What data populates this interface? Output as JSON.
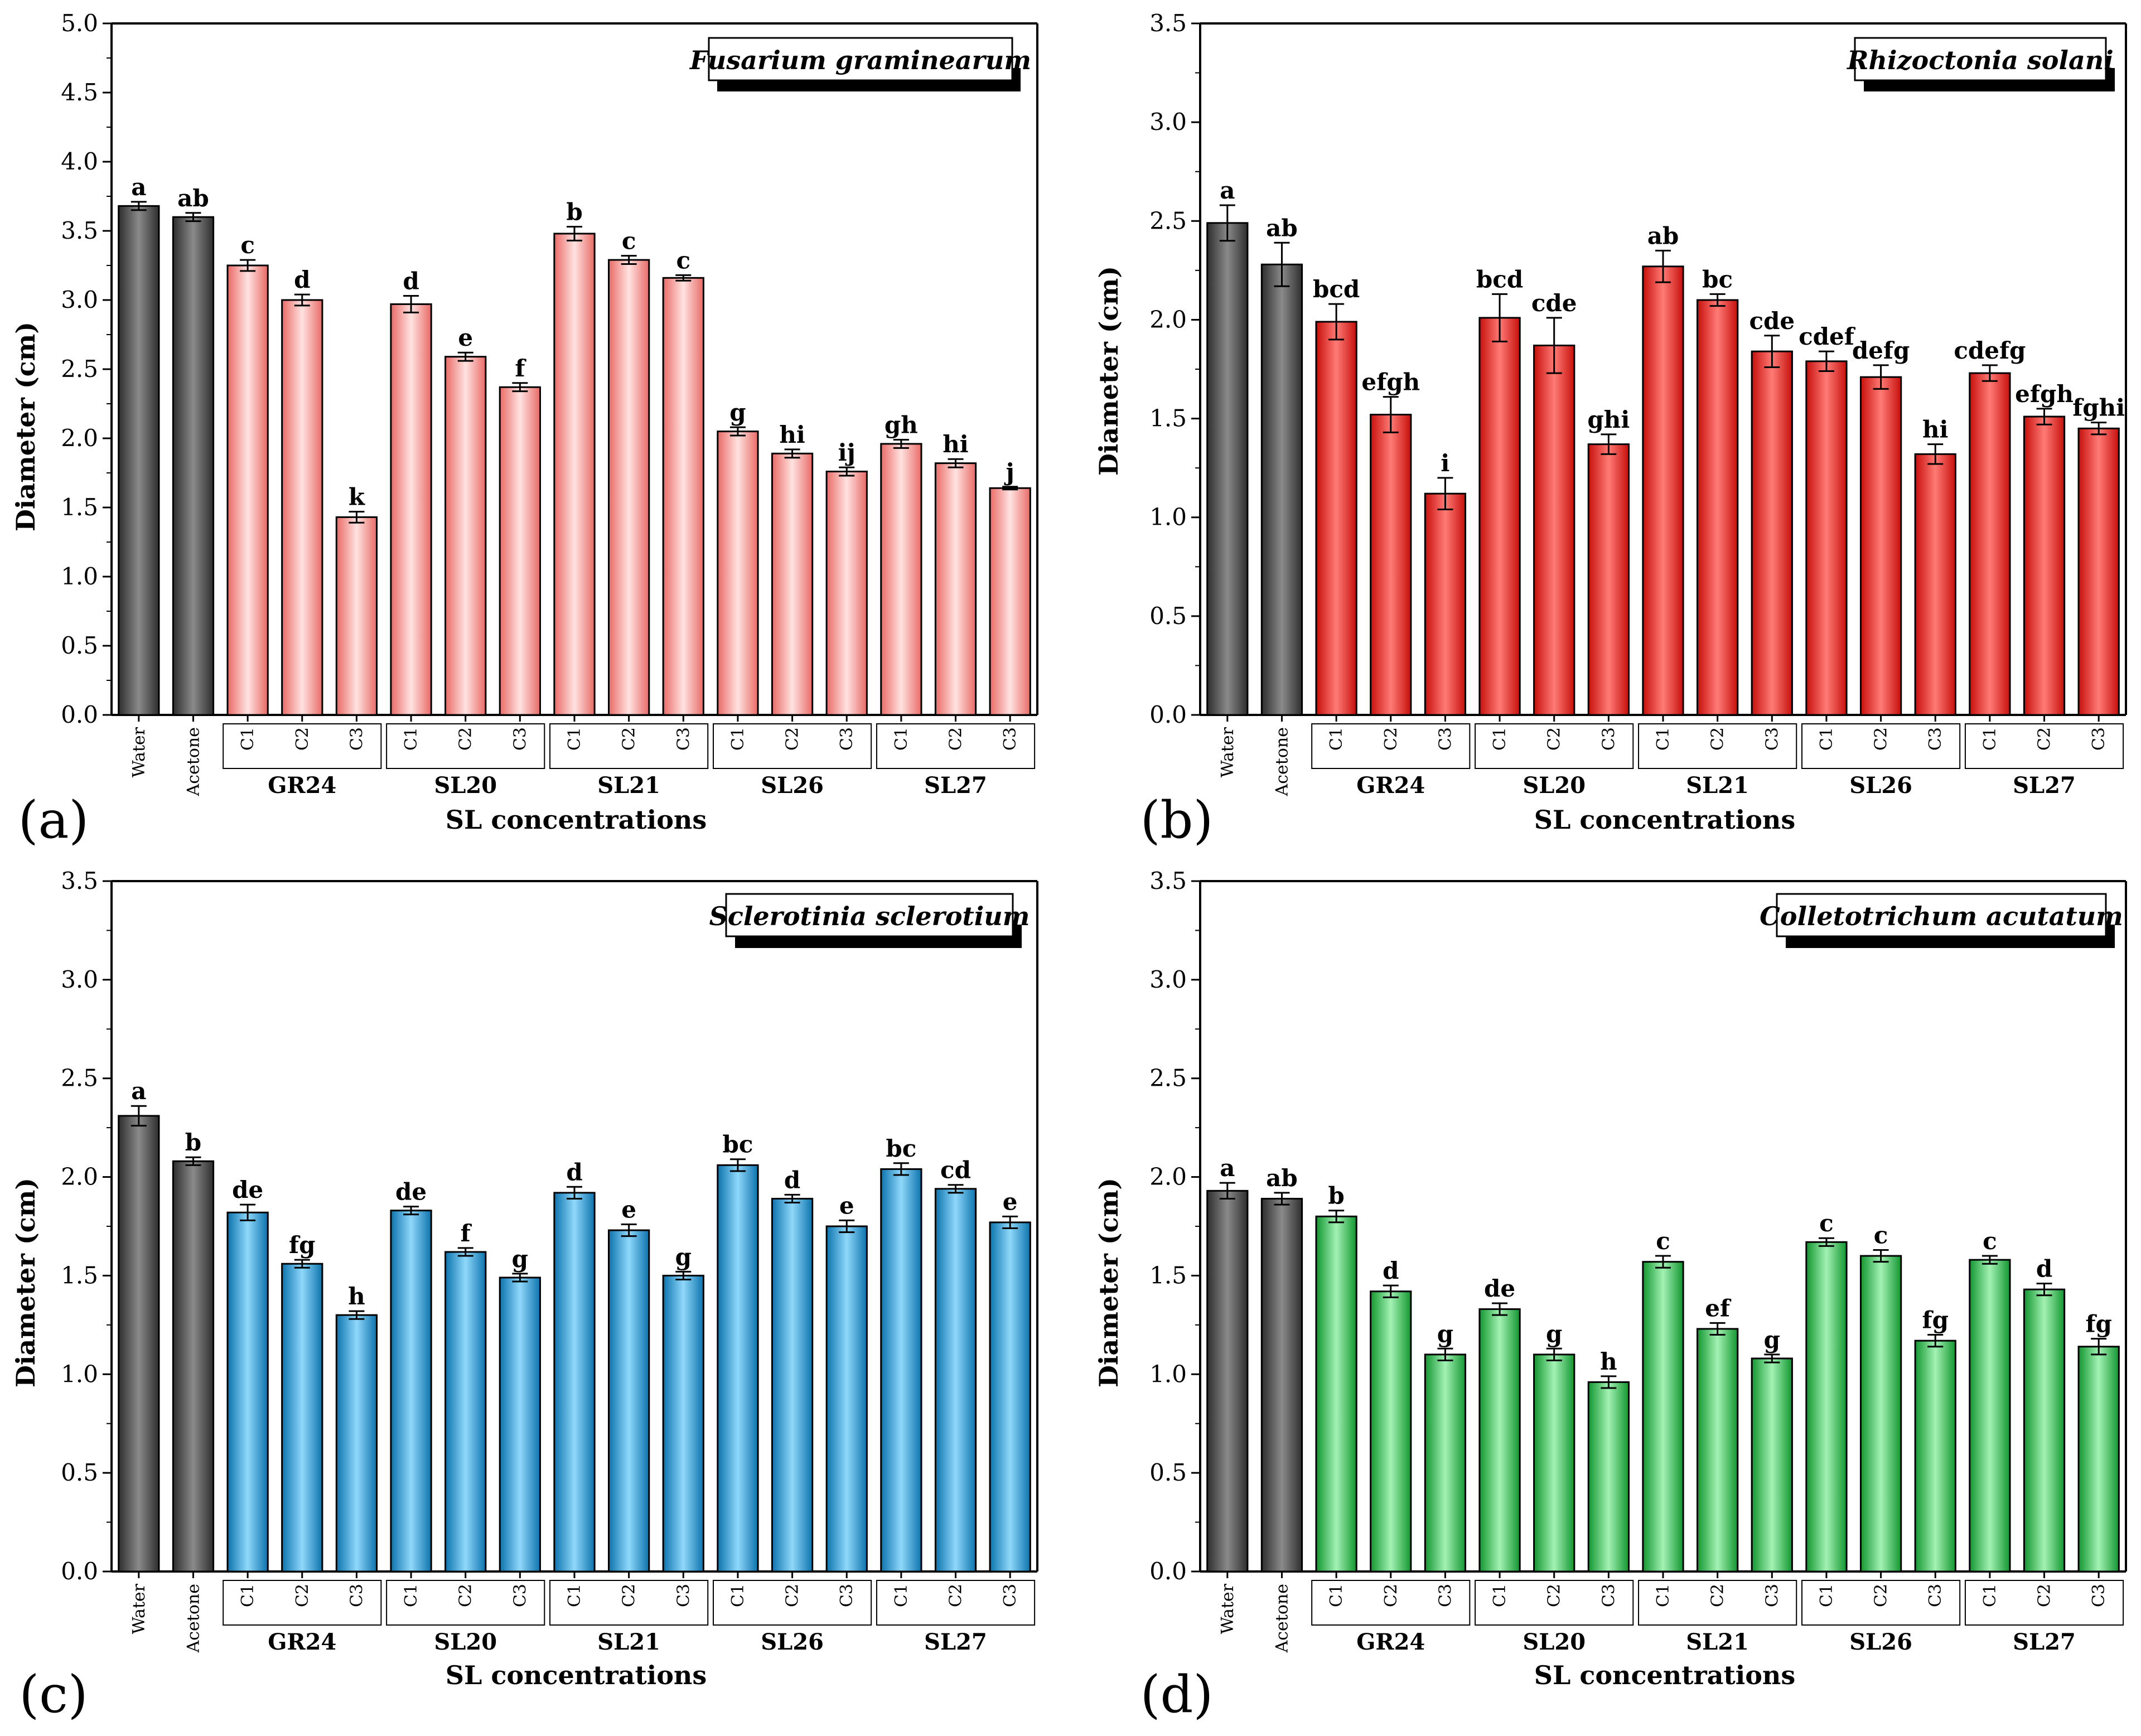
{
  "colors": {
    "control": "#4a4a4a",
    "red_light": "#f4a8a5",
    "red": "#e4201c",
    "blue": "#1e9ad6",
    "green": "#25b848"
  },
  "chart_data": [
    {
      "type": "bar",
      "panel_label": "(a)",
      "title": "Fusarium graminearum",
      "xlabel": "SL concentrations",
      "ylabel": "Diameter (cm)",
      "ylim": [
        0,
        5.0
      ],
      "yticks": [
        "0.0",
        "0.5",
        "1.0",
        "1.5",
        "2.0",
        "2.5",
        "3.0",
        "3.5",
        "4.0",
        "4.5",
        "5.0"
      ],
      "fill": "red_light",
      "categories": [
        "Water",
        "Acetone",
        "C1",
        "C2",
        "C3",
        "C1",
        "C2",
        "C3",
        "C1",
        "C2",
        "C3",
        "C1",
        "C2",
        "C3",
        "C1",
        "C2",
        "C3"
      ],
      "groups": [
        "GR24",
        "SL20",
        "SL21",
        "SL26",
        "SL27"
      ],
      "values": [
        3.68,
        3.6,
        3.25,
        3.0,
        1.43,
        2.97,
        2.59,
        2.37,
        3.48,
        3.29,
        3.16,
        2.05,
        1.89,
        1.76,
        1.96,
        1.82,
        1.64
      ],
      "errors": [
        0.03,
        0.03,
        0.04,
        0.04,
        0.04,
        0.06,
        0.03,
        0.03,
        0.05,
        0.03,
        0.02,
        0.03,
        0.03,
        0.03,
        0.03,
        0.03,
        0.01
      ],
      "letters": [
        "a",
        "ab",
        "c",
        "d",
        "k",
        "d",
        "e",
        "f",
        "b",
        "c",
        "c",
        "g",
        "hi",
        "ij",
        "gh",
        "hi",
        "j"
      ]
    },
    {
      "type": "bar",
      "panel_label": "(b)",
      "title": "Rhizoctonia solani",
      "xlabel": "SL concentrations",
      "ylabel": "Diameter (cm)",
      "ylim": [
        0,
        3.5
      ],
      "yticks": [
        "0.0",
        "0.5",
        "1.0",
        "1.5",
        "2.0",
        "2.5",
        "3.0",
        "3.5"
      ],
      "fill": "red",
      "categories": [
        "Water",
        "Acetone",
        "C1",
        "C2",
        "C3",
        "C1",
        "C2",
        "C3",
        "C1",
        "C2",
        "C3",
        "C1",
        "C2",
        "C3",
        "C1",
        "C2",
        "C3"
      ],
      "groups": [
        "GR24",
        "SL20",
        "SL21",
        "SL26",
        "SL27"
      ],
      "values": [
        2.49,
        2.28,
        1.99,
        1.52,
        1.12,
        2.01,
        1.87,
        1.37,
        2.27,
        2.1,
        1.84,
        1.79,
        1.71,
        1.32,
        1.73,
        1.51,
        1.45
      ],
      "errors": [
        0.09,
        0.11,
        0.09,
        0.09,
        0.08,
        0.12,
        0.14,
        0.05,
        0.08,
        0.03,
        0.08,
        0.05,
        0.06,
        0.05,
        0.04,
        0.04,
        0.03
      ],
      "letters": [
        "a",
        "ab",
        "bcd",
        "efgh",
        "i",
        "bcd",
        "cde",
        "ghi",
        "ab",
        "bc",
        "cde",
        "cdef",
        "defg",
        "hi",
        "cdefg",
        "efgh",
        "fghi"
      ]
    },
    {
      "type": "bar",
      "panel_label": "(c)",
      "title": "Sclerotinia sclerotium",
      "xlabel": "SL concentrations",
      "ylabel": "Diameter (cm)",
      "ylim": [
        0,
        3.5
      ],
      "yticks": [
        "0.0",
        "0.5",
        "1.0",
        "1.5",
        "2.0",
        "2.5",
        "3.0",
        "3.5"
      ],
      "fill": "blue",
      "categories": [
        "Water",
        "Acetone",
        "C1",
        "C2",
        "C3",
        "C1",
        "C2",
        "C3",
        "C1",
        "C2",
        "C3",
        "C1",
        "C2",
        "C3",
        "C1",
        "C2",
        "C3"
      ],
      "groups": [
        "GR24",
        "SL20",
        "SL21",
        "SL26",
        "SL27"
      ],
      "values": [
        2.31,
        2.08,
        1.82,
        1.56,
        1.3,
        1.83,
        1.62,
        1.49,
        1.92,
        1.73,
        1.5,
        2.06,
        1.89,
        1.75,
        2.04,
        1.94,
        1.77
      ],
      "errors": [
        0.05,
        0.02,
        0.04,
        0.02,
        0.02,
        0.02,
        0.02,
        0.02,
        0.03,
        0.03,
        0.02,
        0.03,
        0.02,
        0.03,
        0.03,
        0.02,
        0.03
      ],
      "letters": [
        "a",
        "b",
        "de",
        "fg",
        "h",
        "de",
        "f",
        "g",
        "d",
        "e",
        "g",
        "bc",
        "d",
        "e",
        "bc",
        "cd",
        "e"
      ]
    },
    {
      "type": "bar",
      "panel_label": "(d)",
      "title": "Colletotrichum acutatum",
      "xlabel": "SL concentrations",
      "ylabel": "Diameter (cm)",
      "ylim": [
        0,
        3.5
      ],
      "yticks": [
        "0.0",
        "0.5",
        "1.0",
        "1.5",
        "2.0",
        "2.5",
        "3.0",
        "3.5"
      ],
      "fill": "green",
      "categories": [
        "Water",
        "Acetone",
        "C1",
        "C2",
        "C3",
        "C1",
        "C2",
        "C3",
        "C1",
        "C2",
        "C3",
        "C1",
        "C2",
        "C3",
        "C1",
        "C2",
        "C3"
      ],
      "groups": [
        "GR24",
        "SL20",
        "SL21",
        "SL26",
        "SL27"
      ],
      "values": [
        1.93,
        1.89,
        1.8,
        1.42,
        1.1,
        1.33,
        1.1,
        0.96,
        1.57,
        1.23,
        1.08,
        1.67,
        1.6,
        1.17,
        1.58,
        1.43,
        1.14
      ],
      "errors": [
        0.04,
        0.03,
        0.03,
        0.03,
        0.03,
        0.03,
        0.03,
        0.03,
        0.03,
        0.03,
        0.02,
        0.02,
        0.03,
        0.03,
        0.02,
        0.03,
        0.04
      ],
      "letters": [
        "a",
        "ab",
        "b",
        "d",
        "g",
        "de",
        "g",
        "h",
        "c",
        "ef",
        "g",
        "c",
        "c",
        "fg",
        "c",
        "d",
        "fg"
      ]
    }
  ]
}
